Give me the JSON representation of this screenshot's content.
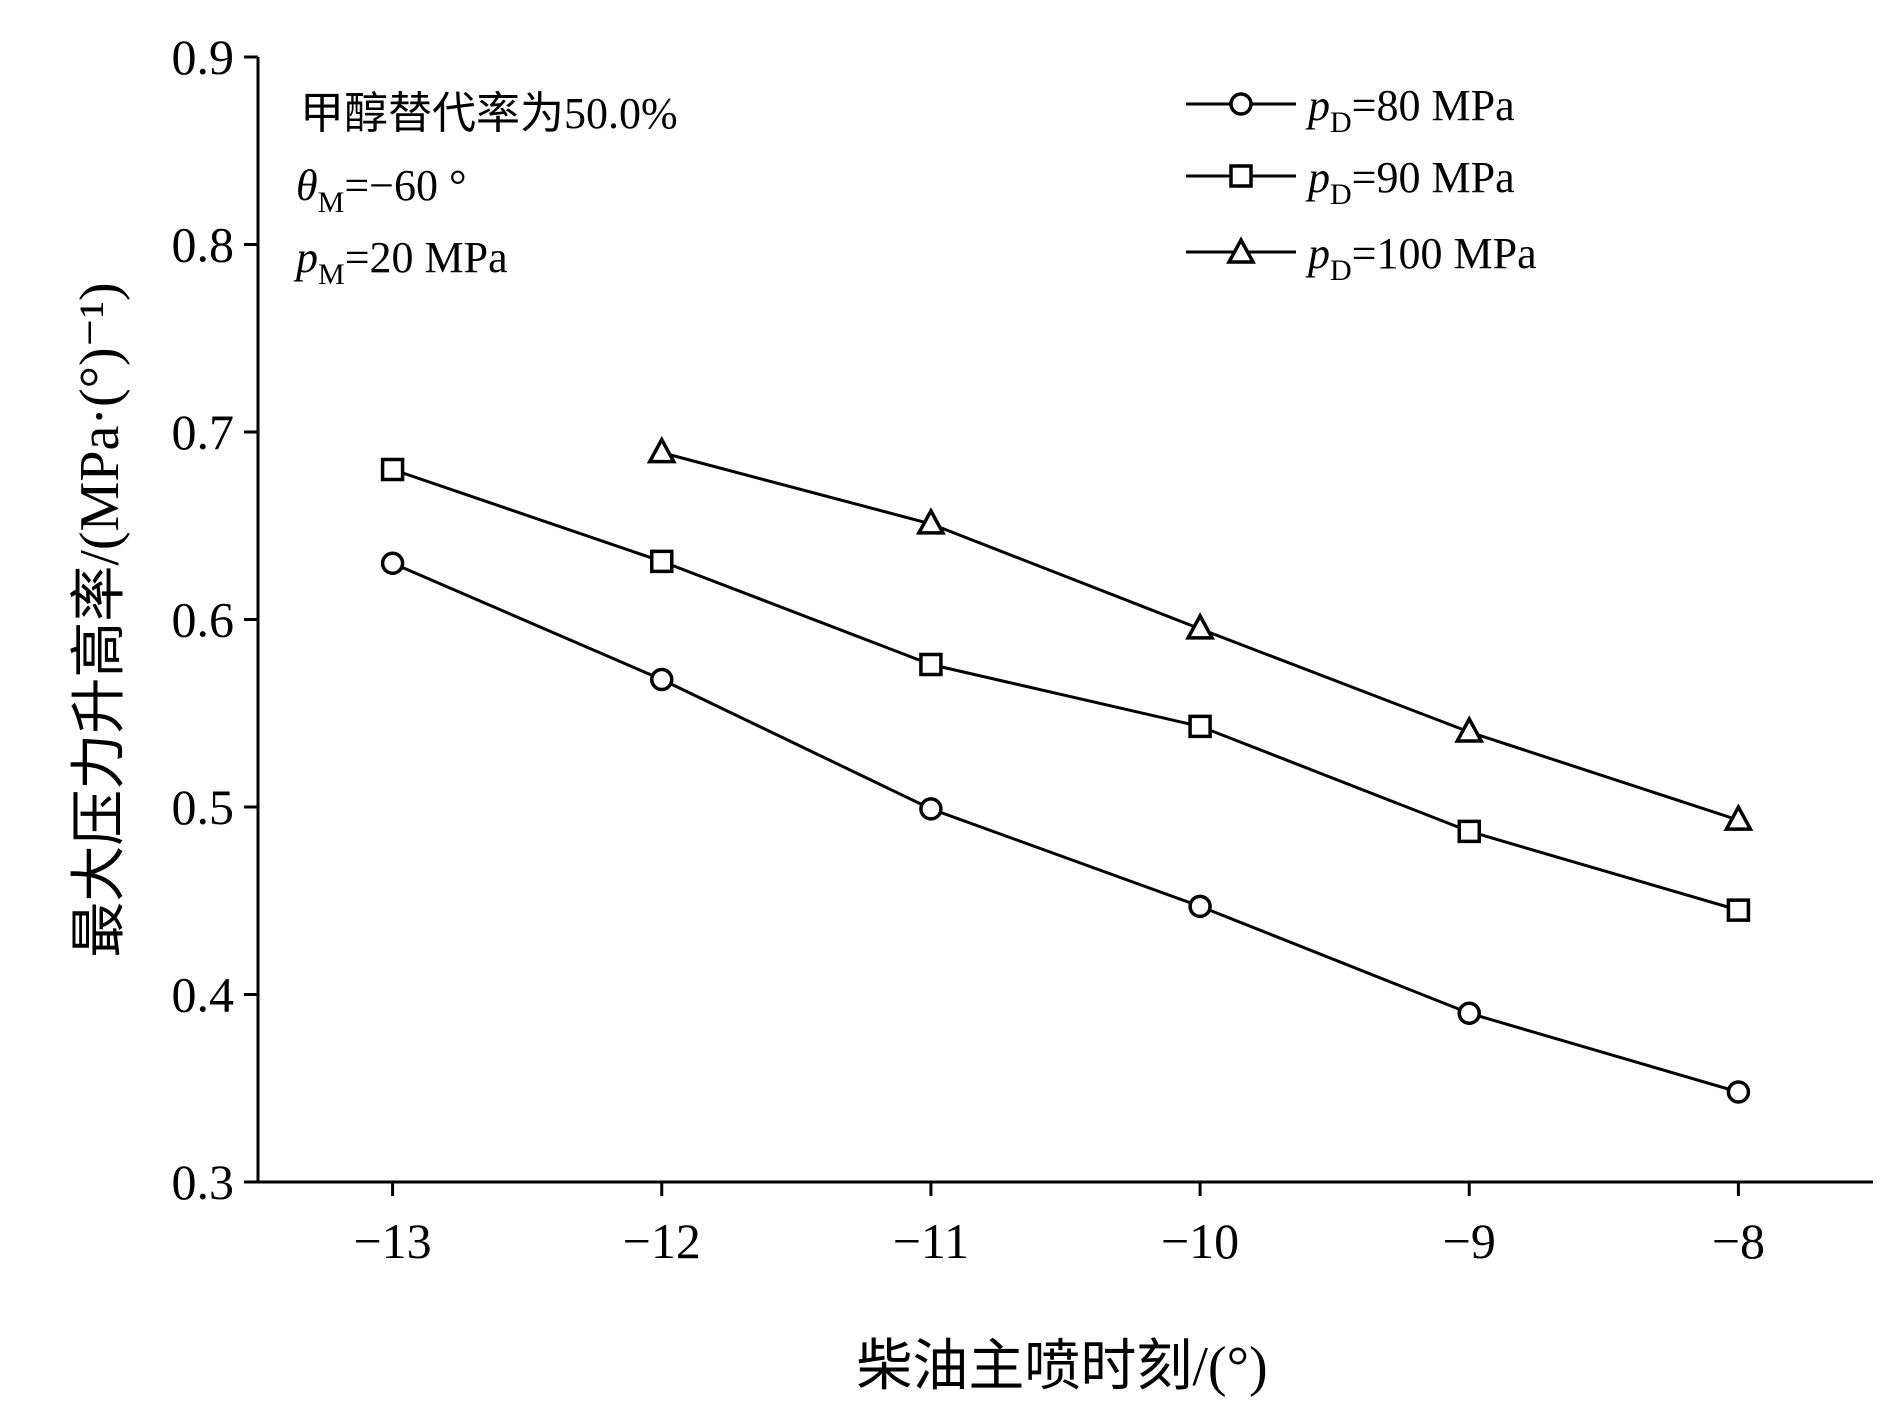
{
  "chart_data": {
    "type": "line",
    "x": [
      -13,
      -12,
      -11,
      -10,
      -9,
      -8
    ],
    "xlim": [
      -13.5,
      -7.5
    ],
    "ylim": [
      0.3,
      0.9
    ],
    "xticks": [
      -13,
      -12,
      -11,
      -10,
      -9,
      -8
    ],
    "xtick_labels": [
      "−13",
      "−12",
      "−11",
      "−10",
      "−9",
      "−8"
    ],
    "yticks": [
      0.3,
      0.4,
      0.5,
      0.6,
      0.7,
      0.8,
      0.9
    ],
    "ytick_labels": [
      "0.3",
      "0.4",
      "0.5",
      "0.6",
      "0.7",
      "0.8",
      "0.9"
    ],
    "xlabel": "柴油主喷时刻/(°)",
    "ylabel": "最大压力升高率/(MPa·(°)⁻¹)",
    "grid": false,
    "legend_position": "top-right",
    "series": [
      {
        "name": "pD=80 MPa",
        "var": "p",
        "sub": "D",
        "rest": "=80 MPa",
        "marker": "circle",
        "x": [
          -13,
          -12,
          -11,
          -10,
          -9,
          -8
        ],
        "values": [
          0.63,
          0.568,
          0.499,
          0.447,
          0.39,
          0.348
        ]
      },
      {
        "name": "pD=90 MPa",
        "var": "p",
        "sub": "D",
        "rest": "=90 MPa",
        "marker": "square",
        "x": [
          -13,
          -12,
          -11,
          -10,
          -9,
          -8
        ],
        "values": [
          0.68,
          0.631,
          0.576,
          0.543,
          0.487,
          0.445
        ]
      },
      {
        "name": "pD=100 MPa",
        "var": "p",
        "sub": "D",
        "rest": "=100 MPa",
        "marker": "triangle",
        "x": [
          -12,
          -11,
          -10,
          -9,
          -8
        ],
        "values": [
          0.689,
          0.651,
          0.595,
          0.54,
          0.493
        ]
      }
    ],
    "annotations": {
      "line1": "甲醇替代率为50.0%",
      "line2": {
        "var": "θ",
        "sub": "M",
        "rest": "=−60 °"
      },
      "line3": {
        "var": "p",
        "sub": "M",
        "rest": "=20 MPa"
      }
    }
  },
  "colors": {
    "line": "#000000",
    "background": "#ffffff"
  }
}
